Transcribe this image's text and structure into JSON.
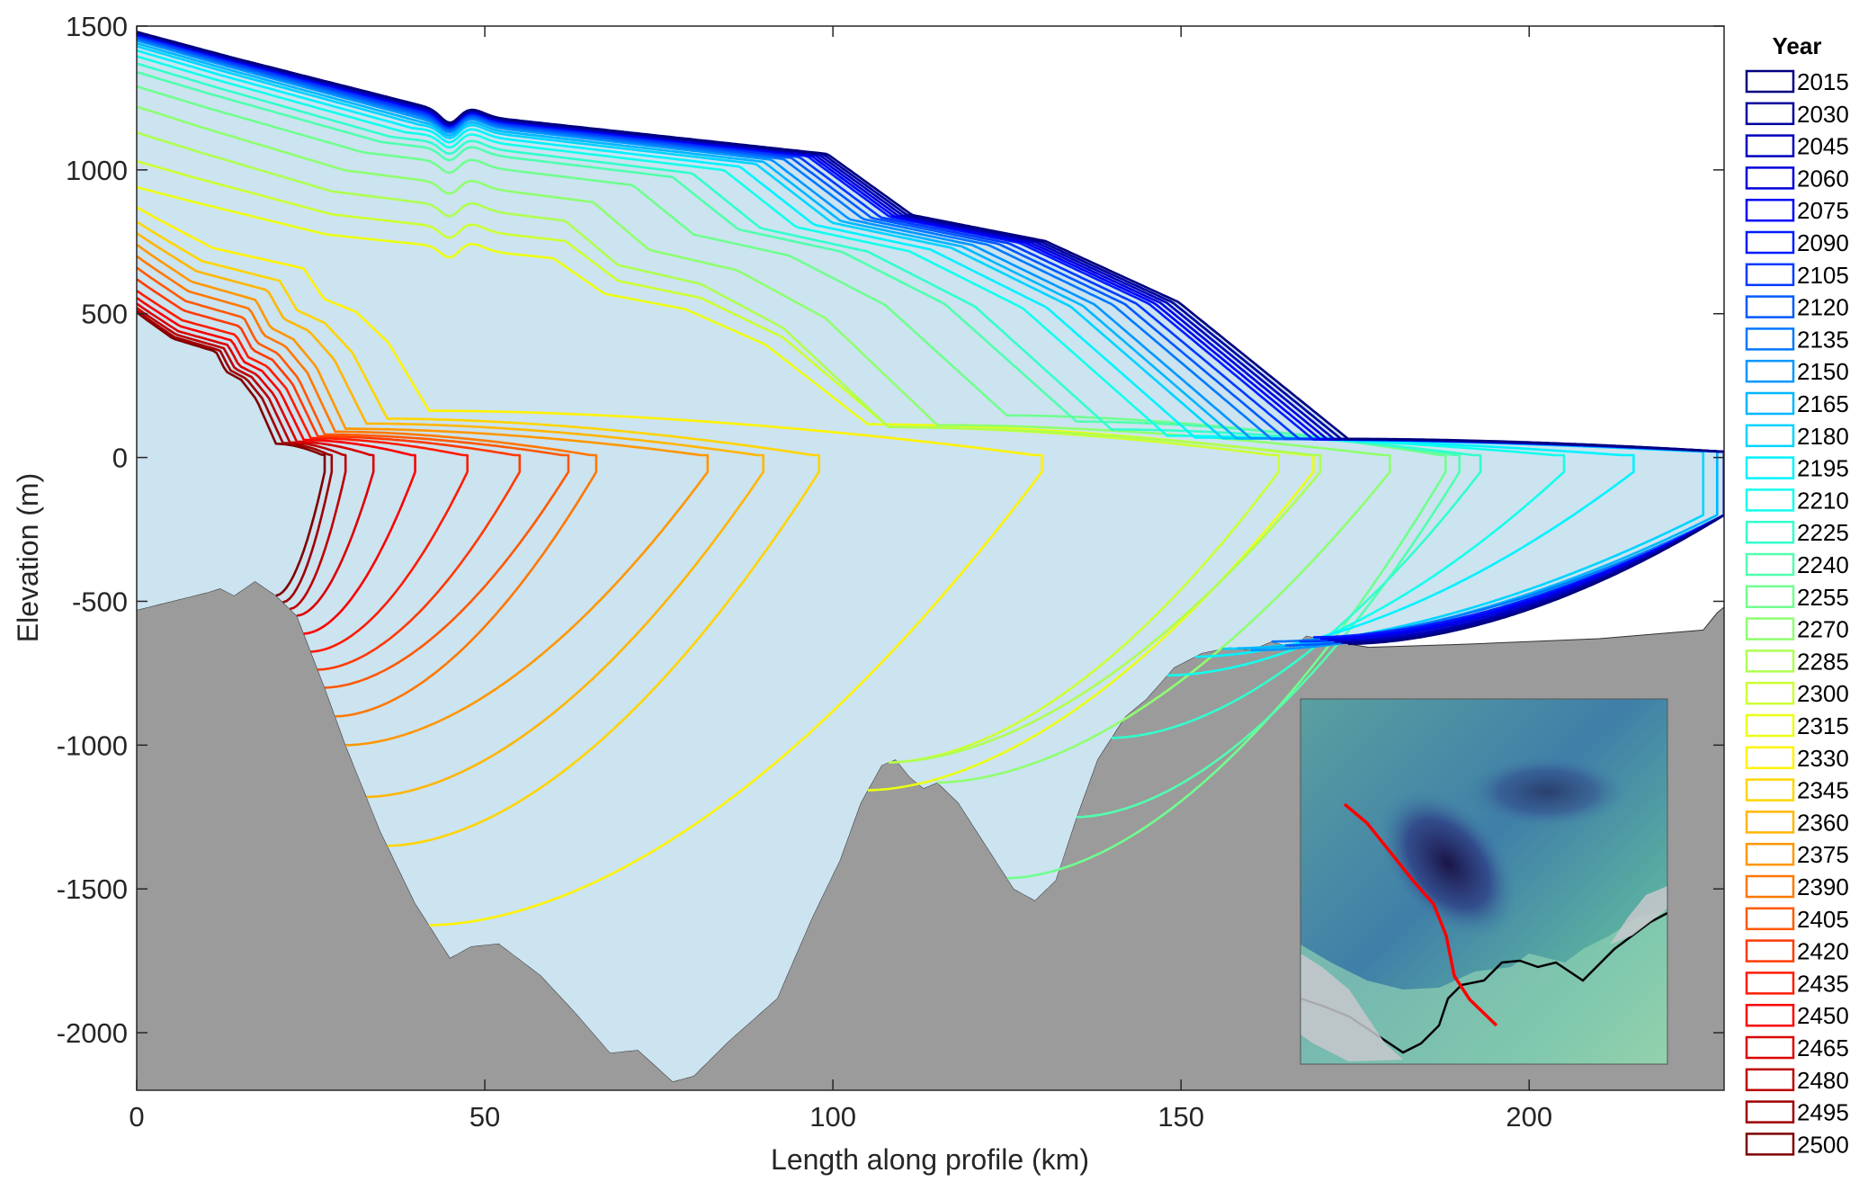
{
  "chart_data": {
    "type": "line",
    "title": "",
    "xlabel": "Length along profile (km)",
    "ylabel": "Elevation (m)",
    "xlim": [
      0,
      228
    ],
    "ylim": [
      -2200,
      1500
    ],
    "x_ticks": [
      0,
      50,
      100,
      150,
      200
    ],
    "y_ticks": [
      1500,
      1000,
      500,
      0,
      -500,
      -1000,
      -1500,
      -2000
    ],
    "y_tick_labels": [
      "1500",
      "1000",
      "500",
      "0",
      "-500",
      "-1000",
      "-1500",
      "-2000"
    ],
    "x_tick_labels": [
      "0",
      "50",
      "100",
      "150",
      "200"
    ],
    "legend_title": "Year",
    "legend_position": "outside-right",
    "colormap": "jet",
    "colors": {
      "ice": "#cce3f0",
      "bed": "#9b9b9b",
      "flowline": "#ff0000"
    },
    "bed": [
      [
        0,
        -530
      ],
      [
        10,
        -470
      ],
      [
        12,
        -455
      ],
      [
        14,
        -480
      ],
      [
        17,
        -430
      ],
      [
        20,
        -480
      ],
      [
        23,
        -550
      ],
      [
        27,
        -800
      ],
      [
        30,
        -1000
      ],
      [
        35,
        -1300
      ],
      [
        40,
        -1550
      ],
      [
        45,
        -1740
      ],
      [
        48,
        -1700
      ],
      [
        52,
        -1690
      ],
      [
        58,
        -1800
      ],
      [
        63,
        -1930
      ],
      [
        68,
        -2070
      ],
      [
        72,
        -2060
      ],
      [
        77,
        -2170
      ],
      [
        80,
        -2150
      ],
      [
        85,
        -2030
      ],
      [
        92,
        -1880
      ],
      [
        97,
        -1600
      ],
      [
        101,
        -1400
      ],
      [
        104,
        -1200
      ],
      [
        107,
        -1070
      ],
      [
        109,
        -1050
      ],
      [
        111,
        -1110
      ],
      [
        113,
        -1150
      ],
      [
        115,
        -1130
      ],
      [
        118,
        -1200
      ],
      [
        122,
        -1350
      ],
      [
        126,
        -1500
      ],
      [
        129,
        -1540
      ],
      [
        132,
        -1470
      ],
      [
        135,
        -1250
      ],
      [
        138,
        -1050
      ],
      [
        142,
        -900
      ],
      [
        145,
        -840
      ],
      [
        149,
        -730
      ],
      [
        153,
        -680
      ],
      [
        157,
        -660
      ],
      [
        160,
        -670
      ],
      [
        163,
        -640
      ],
      [
        166,
        -660
      ],
      [
        168,
        -620
      ],
      [
        172,
        -640
      ],
      [
        177,
        -660
      ],
      [
        190,
        -650
      ],
      [
        210,
        -630
      ],
      [
        225,
        -600
      ],
      [
        227,
        -540
      ],
      [
        228,
        -520
      ]
    ],
    "series": [
      {
        "year": "2015",
        "surface_at_0_m": 1480,
        "grounding_km": 174,
        "front_km": 228
      },
      {
        "year": "2030",
        "surface_at_0_m": 1478,
        "grounding_km": 173,
        "front_km": 228
      },
      {
        "year": "2045",
        "surface_at_0_m": 1476,
        "grounding_km": 172,
        "front_km": 228
      },
      {
        "year": "2060",
        "surface_at_0_m": 1474,
        "grounding_km": 171,
        "front_km": 228
      },
      {
        "year": "2075",
        "surface_at_0_m": 1472,
        "grounding_km": 170,
        "front_km": 228
      },
      {
        "year": "2090",
        "surface_at_0_m": 1470,
        "grounding_km": 169,
        "front_km": 228
      },
      {
        "year": "2105",
        "surface_at_0_m": 1465,
        "grounding_km": 167,
        "front_km": 228
      },
      {
        "year": "2120",
        "surface_at_0_m": 1460,
        "grounding_km": 165,
        "front_km": 228
      },
      {
        "year": "2135",
        "surface_at_0_m": 1455,
        "grounding_km": 163,
        "front_km": 228
      },
      {
        "year": "2150",
        "surface_at_0_m": 1450,
        "grounding_km": 160,
        "front_km": 228
      },
      {
        "year": "2165",
        "surface_at_0_m": 1440,
        "grounding_km": 158,
        "front_km": 227
      },
      {
        "year": "2180",
        "surface_at_0_m": 1430,
        "grounding_km": 156,
        "front_km": 225
      },
      {
        "year": "2195",
        "surface_at_0_m": 1415,
        "grounding_km": 152,
        "front_km": 215
      },
      {
        "year": "2210",
        "surface_at_0_m": 1395,
        "grounding_km": 148,
        "front_km": 205
      },
      {
        "year": "2225",
        "surface_at_0_m": 1370,
        "grounding_km": 140,
        "front_km": 193
      },
      {
        "year": "2240",
        "surface_at_0_m": 1340,
        "grounding_km": 135,
        "front_km": 190
      },
      {
        "year": "2255",
        "surface_at_0_m": 1290,
        "grounding_km": 125,
        "front_km": 188
      },
      {
        "year": "2270",
        "surface_at_0_m": 1220,
        "grounding_km": 115,
        "front_km": 180
      },
      {
        "year": "2285",
        "surface_at_0_m": 1130,
        "grounding_km": 108,
        "front_km": 170
      },
      {
        "year": "2300",
        "surface_at_0_m": 1030,
        "grounding_km": 108,
        "front_km": 164
      },
      {
        "year": "2315",
        "surface_at_0_m": 940,
        "grounding_km": 105,
        "front_km": 169
      },
      {
        "year": "2330",
        "surface_at_0_m": 870,
        "grounding_km": 42,
        "front_km": 130
      },
      {
        "year": "2345",
        "surface_at_0_m": 820,
        "grounding_km": 36,
        "front_km": 98
      },
      {
        "year": "2360",
        "surface_at_0_m": 780,
        "grounding_km": 33,
        "front_km": 90
      },
      {
        "year": "2375",
        "surface_at_0_m": 740,
        "grounding_km": 30,
        "front_km": 82
      },
      {
        "year": "2390",
        "surface_at_0_m": 700,
        "grounding_km": 28.5,
        "front_km": 66
      },
      {
        "year": "2405",
        "surface_at_0_m": 660,
        "grounding_km": 27,
        "front_km": 62
      },
      {
        "year": "2420",
        "surface_at_0_m": 620,
        "grounding_km": 26,
        "front_km": 55
      },
      {
        "year": "2435",
        "surface_at_0_m": 580,
        "grounding_km": 25,
        "front_km": 47.5
      },
      {
        "year": "2450",
        "surface_at_0_m": 555,
        "grounding_km": 24,
        "front_km": 40
      },
      {
        "year": "2465",
        "surface_at_0_m": 535,
        "grounding_km": 23,
        "front_km": 34
      },
      {
        "year": "2480",
        "surface_at_0_m": 520,
        "grounding_km": 22,
        "front_km": 30
      },
      {
        "year": "2495",
        "surface_at_0_m": 510,
        "grounding_km": 21,
        "front_km": 28
      },
      {
        "year": "2500",
        "surface_at_0_m": 505,
        "grounding_km": 20,
        "front_km": 27
      }
    ]
  }
}
